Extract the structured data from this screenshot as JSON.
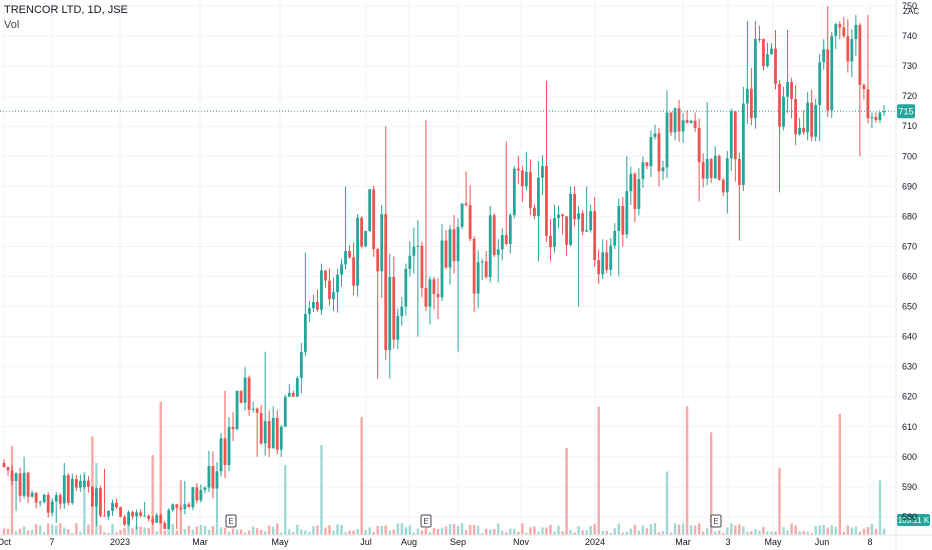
{
  "header": {
    "title": "TRENCOR LTD, 1D, JSE",
    "volume_label": "Vol"
  },
  "currency_label": "ZAC",
  "last_price_label": "715",
  "volume_badge_label": "103.11 K",
  "earnings_marker_label": "E",
  "colors": {
    "up": "#26a69a",
    "down": "#ef5350",
    "grid": "#f0f3fa",
    "last_line": "#26a69a",
    "vol_up": "#9fd9d3",
    "vol_down": "#f7a9a7"
  },
  "chart_data": {
    "type": "candlestick",
    "y_axis": {
      "min": 574,
      "max": 752,
      "ticks": [
        580,
        590,
        600,
        610,
        620,
        630,
        640,
        650,
        660,
        670,
        680,
        690,
        700,
        710,
        720,
        730,
        740,
        750
      ],
      "position": "right"
    },
    "x_axis": {
      "ticks": [
        "Oct",
        "7",
        "2023",
        "Mar",
        "May",
        "Jul",
        "Aug",
        "Sep",
        "Nov",
        "2024",
        "Mar",
        "3",
        "May",
        "Jun",
        "8"
      ]
    },
    "last_price": 715,
    "last_volume": "103.11 K",
    "earnings_markers": [
      "2023-03",
      "2023-08",
      "2024-04"
    ],
    "price_series": [
      {
        "period": "Oct 2022",
        "open": 598,
        "high": 600,
        "low": 582,
        "close": 585
      },
      {
        "period": "Nov 2022",
        "open": 585,
        "high": 598,
        "low": 578,
        "close": 592
      },
      {
        "period": "Dec 2022",
        "open": 590,
        "high": 596,
        "low": 577,
        "close": 580
      },
      {
        "period": "Jan 2023",
        "open": 580,
        "high": 585,
        "low": 576,
        "close": 578
      },
      {
        "period": "Feb 2023",
        "open": 578,
        "high": 592,
        "low": 576,
        "close": 589
      },
      {
        "period": "Mar 2023",
        "open": 589,
        "high": 622,
        "low": 578,
        "close": 618
      },
      {
        "period": "Apr 2023",
        "open": 618,
        "high": 635,
        "low": 600,
        "close": 610
      },
      {
        "period": "May 2023",
        "open": 610,
        "high": 668,
        "low": 620,
        "close": 662
      },
      {
        "period": "Jun 2023",
        "open": 662,
        "high": 690,
        "low": 648,
        "close": 670
      },
      {
        "period": "Jul 2023",
        "open": 670,
        "high": 710,
        "low": 626,
        "close": 650
      },
      {
        "period": "Aug 2023",
        "open": 650,
        "high": 712,
        "low": 640,
        "close": 672
      },
      {
        "period": "Sep 2023",
        "open": 672,
        "high": 695,
        "low": 635,
        "close": 665
      },
      {
        "period": "Oct 2023",
        "open": 665,
        "high": 705,
        "low": 658,
        "close": 690
      },
      {
        "period": "Nov 2023",
        "open": 690,
        "high": 725,
        "low": 665,
        "close": 680
      },
      {
        "period": "Dec 2023",
        "open": 680,
        "high": 690,
        "low": 650,
        "close": 668
      },
      {
        "period": "Jan 2024",
        "open": 668,
        "high": 700,
        "low": 660,
        "close": 698
      },
      {
        "period": "Feb 2024",
        "open": 698,
        "high": 722,
        "low": 690,
        "close": 712
      },
      {
        "period": "Mar 2024",
        "open": 712,
        "high": 718,
        "low": 685,
        "close": 688
      },
      {
        "period": "Apr 2024",
        "open": 688,
        "high": 745,
        "low": 672,
        "close": 730
      },
      {
        "period": "May 2024",
        "open": 730,
        "high": 742,
        "low": 688,
        "close": 708
      },
      {
        "period": "Jun 2024",
        "open": 708,
        "high": 750,
        "low": 705,
        "close": 740
      },
      {
        "period": "Jul 2024",
        "open": 740,
        "high": 747,
        "low": 700,
        "close": 715
      }
    ]
  }
}
